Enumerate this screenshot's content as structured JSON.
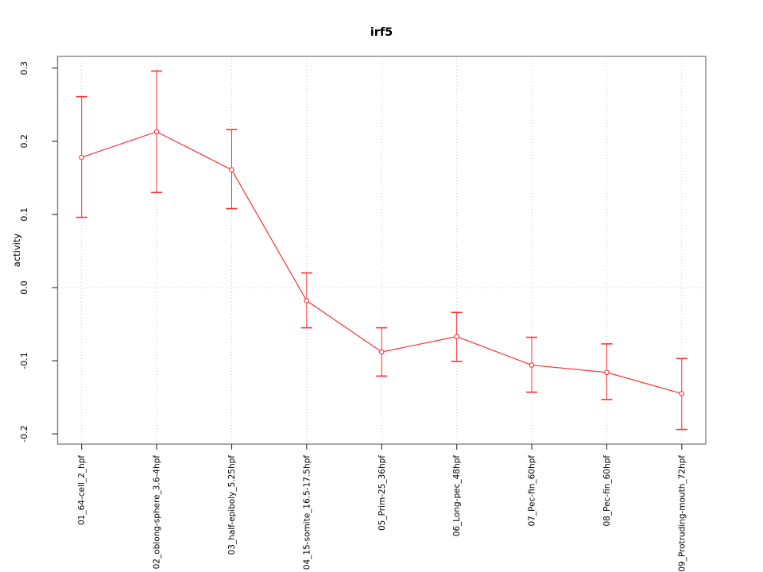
{
  "chart_data": {
    "type": "line",
    "title": "irf5",
    "xlabel": "",
    "ylabel": "activity",
    "legend": "none",
    "marker": "open-circle",
    "categories": [
      "01_64-cell_2_hpf",
      "02_oblong-sphere_3.6-4hpf",
      "03_half-epiboly_5.25hpf",
      "04_15-somite_16.5-17.5hpf",
      "05_Prim-25_36hpf",
      "06_Long-pec_48hpf",
      "07_Pec-fin_60hpf",
      "08_Pec-fin_60hpf",
      "09_Protruding-mouth_72hpf"
    ],
    "series": [
      {
        "name": "irf5 activity",
        "values": [
          0.178,
          0.213,
          0.161,
          -0.018,
          -0.088,
          -0.067,
          -0.106,
          -0.116,
          -0.145
        ],
        "error_low": [
          0.096,
          0.13,
          0.108,
          -0.055,
          -0.121,
          -0.101,
          -0.143,
          -0.153,
          -0.194
        ],
        "error_high": [
          0.261,
          0.296,
          0.216,
          0.02,
          -0.055,
          -0.034,
          -0.068,
          -0.077,
          -0.097
        ]
      }
    ],
    "ylim": [
      -0.214,
      0.316
    ],
    "yticks": [
      -0.2,
      -0.1,
      0,
      0.1,
      0.2,
      0.3
    ],
    "ytick_labels": [
      "-0.2",
      "-0.1",
      "0.0",
      "0.1",
      "0.2",
      "0.3"
    ],
    "grid": {
      "vertical_at_each_category": true,
      "horizontal_at": 0
    },
    "colors": {
      "series": "#ff3030",
      "marker_fill": "#ffffff",
      "grid": "#c9c9c9",
      "box": "#858585",
      "tick": "#3a3a3a",
      "text": "#000000",
      "background": "#ffffff"
    }
  }
}
